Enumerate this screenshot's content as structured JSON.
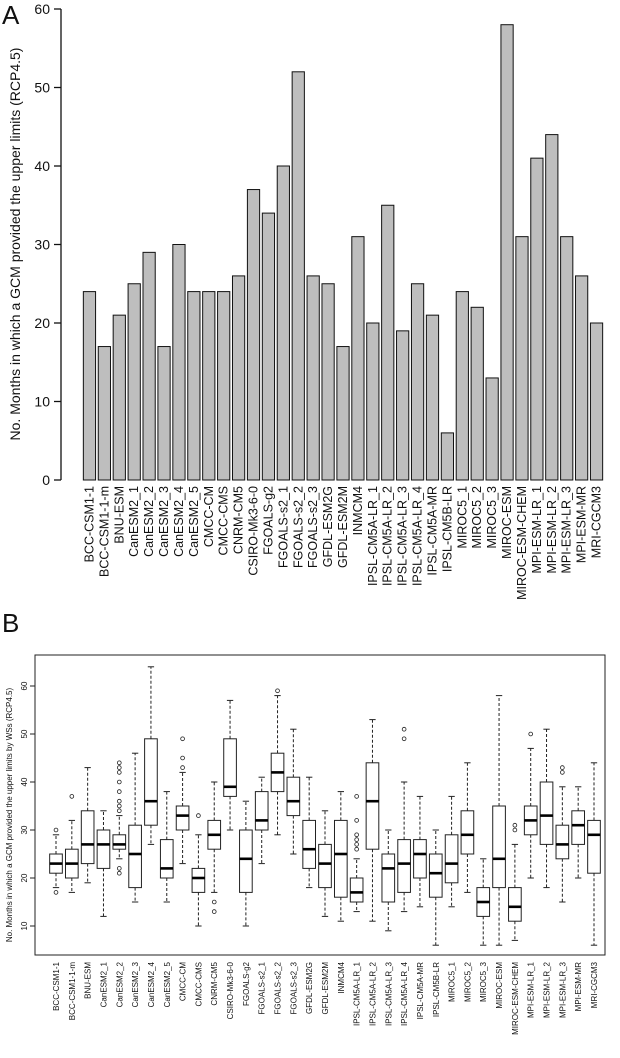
{
  "chart_data": [
    {
      "panel": "A",
      "type": "bar",
      "title": "",
      "xlabel": "",
      "ylabel": "No. Months in which a GCM provided the upper limits (RCP4.5)",
      "ylim": [
        0,
        60
      ],
      "yticks": [
        0,
        10,
        20,
        30,
        40,
        50,
        60
      ],
      "grid": false,
      "bar_color": "#bebebe",
      "categories": [
        "BCC-CSM1-1",
        "BCC-CSM1-1-m",
        "BNU-ESM",
        "CanESM2_1",
        "CanESM2_2",
        "CanESM2_3",
        "CanESM2_4",
        "CanESM2_5",
        "CMCC-CM",
        "CMCC-CMS",
        "CNRM-CM5",
        "CSIRO-Mk3-6-0",
        "FGOALS-g2",
        "FGOALS-s2_1",
        "FGOALS-s2_2",
        "FGOALS-s2_3",
        "GFDL-ESM2G",
        "GFDL-ESM2M",
        "INMCM4",
        "IPSL-CM5A-LR_1",
        "IPSL-CM5A-LR_2",
        "IPSL-CM5A-LR_3",
        "IPSL-CM5A-LR_4",
        "IPSL-CM5A-MR",
        "IPSL-CM5B-LR",
        "MIROC5_1",
        "MIROC5_2",
        "MIROC5_3",
        "MIROC-ESM",
        "MIROC-ESM-CHEM",
        "MPI-ESM-LR_1",
        "MPI-ESM-LR_2",
        "MPI-ESM-LR_3",
        "MPI-ESM-MR",
        "MRI-CGCM3"
      ],
      "values": [
        24,
        17,
        21,
        25,
        29,
        17,
        30,
        24,
        24,
        24,
        26,
        37,
        34,
        40,
        52,
        26,
        25,
        17,
        31,
        20,
        35,
        19,
        25,
        21,
        6,
        24,
        22,
        13,
        58,
        31,
        41,
        44,
        31,
        26,
        20
      ]
    },
    {
      "panel": "B",
      "type": "box",
      "title": "",
      "xlabel": "",
      "ylabel": "No. Months in which a GCM provided the upper limits by WSs (RCP4.5)",
      "ylim": [
        4,
        67
      ],
      "yticks": [
        10,
        20,
        30,
        40,
        50,
        60
      ],
      "grid": false,
      "categories": [
        "BCC-CSM1-1",
        "BCC-CSM1-1-m",
        "BNU-ESM",
        "CanESM2_1",
        "CanESM2_2",
        "CanESM2_3",
        "CanESM2_4",
        "CanESM2_5",
        "CMCC-CM",
        "CMCC-CMS",
        "CNRM-CM5",
        "CSIRO-Mk3-6-0",
        "FGOALS-g2",
        "FGOALS-s2_1",
        "FGOALS-s2_2",
        "FGOALS-s2_3",
        "GFDL-ESM2G",
        "GFDL-ESM2M",
        "INMCM4",
        "IPSL-CM5A-LR_1",
        "IPSL-CM5A-LR_2",
        "IPSL-CM5A-LR_3",
        "IPSL-CM5A-LR_4",
        "IPSL-CM5A-MR",
        "IPSL-CM5B-LR",
        "MIROC5_1",
        "MIROC5_2",
        "MIROC5_3",
        "MIROC-ESM",
        "MIROC-ESM-CHEM",
        "MPI-ESM-LR_1",
        "MPI-ESM-LR_2",
        "MPI-ESM-LR_3",
        "MPI-ESM-MR",
        "MRI-CGCM3"
      ],
      "stats": [
        [
          18,
          21,
          23,
          25,
          29,
          [
            30,
            17
          ]
        ],
        [
          17,
          20,
          23,
          26,
          32,
          [
            37
          ]
        ],
        [
          19,
          23,
          27,
          34,
          43,
          []
        ],
        [
          12,
          22,
          27,
          30,
          34,
          []
        ],
        [
          24,
          26,
          27,
          29,
          33,
          [
            34,
            35,
            36,
            38,
            40,
            42,
            43,
            44,
            21,
            22
          ]
        ],
        [
          15,
          18,
          25,
          31,
          46,
          []
        ],
        [
          27,
          31,
          36,
          49,
          64,
          []
        ],
        [
          15,
          20,
          22,
          28,
          38,
          []
        ],
        [
          23,
          30,
          33,
          35,
          42,
          [
            43,
            45,
            49
          ]
        ],
        [
          10,
          17,
          20,
          22,
          29,
          [
            33
          ]
        ],
        [
          17,
          26,
          29,
          32,
          40,
          [
            13,
            15
          ]
        ],
        [
          30,
          37,
          39,
          49,
          57,
          []
        ],
        [
          10,
          17,
          24,
          30,
          36,
          []
        ],
        [
          23,
          30,
          32,
          38,
          41,
          []
        ],
        [
          29,
          38,
          42,
          46,
          58,
          [
            59
          ]
        ],
        [
          25,
          33,
          36,
          41,
          51,
          []
        ],
        [
          18,
          22,
          26,
          32,
          41,
          []
        ],
        [
          12,
          18,
          23,
          27,
          34,
          []
        ],
        [
          11,
          16,
          25,
          32,
          38,
          []
        ],
        [
          13,
          15,
          17,
          20,
          24,
          [
            26,
            27,
            28,
            29,
            32,
            37
          ]
        ],
        [
          11,
          26,
          36,
          44,
          53,
          []
        ],
        [
          9,
          15,
          22,
          25,
          30,
          []
        ],
        [
          13,
          17,
          23,
          28,
          40,
          [
            49,
            51
          ]
        ],
        [
          14,
          20,
          25,
          28,
          37,
          []
        ],
        [
          6,
          16,
          21,
          25,
          30,
          []
        ],
        [
          14,
          19,
          23,
          29,
          37,
          []
        ],
        [
          17,
          25,
          29,
          34,
          44,
          []
        ],
        [
          6,
          12,
          15,
          18,
          24,
          []
        ],
        [
          6,
          18,
          24,
          35,
          58,
          []
        ],
        [
          7,
          11,
          14,
          18,
          27,
          [
            30,
            31
          ]
        ],
        [
          20,
          29,
          32,
          35,
          47,
          [
            50
          ]
        ],
        [
          18,
          27,
          33,
          40,
          51,
          []
        ],
        [
          15,
          24,
          27,
          31,
          39,
          [
            42,
            43
          ]
        ],
        [
          20,
          27,
          31,
          34,
          39,
          []
        ],
        [
          6,
          21,
          29,
          32,
          44,
          []
        ]
      ]
    }
  ]
}
